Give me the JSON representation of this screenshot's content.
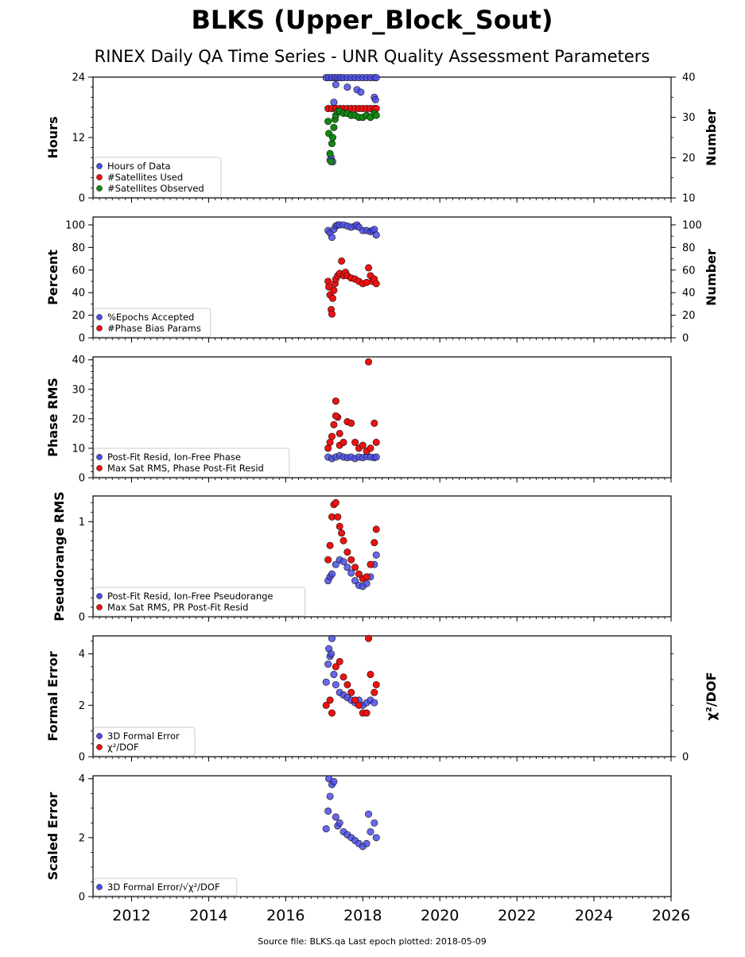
{
  "title": "BLKS (Upper_Block_Sout)",
  "subtitle": "RINEX Daily QA Time Series - UNR Quality Assessment Parameters",
  "footer": "Source file: BLKS.qa Last epoch plotted: 2018-05-09",
  "colors": {
    "blue": "#4c4ce6",
    "red": "#ee1111",
    "green": "#118811"
  },
  "x_axis": {
    "range": [
      2011.0,
      2026.0
    ],
    "ticks": [
      "2012",
      "2014",
      "2016",
      "2018",
      "2020",
      "2022",
      "2024",
      "2026"
    ]
  },
  "chart_data": [
    {
      "type": "scatter",
      "ylabel": "Hours",
      "ylim": [
        0,
        24
      ],
      "yticks": [
        "0",
        "12",
        "24"
      ],
      "right_axis": {
        "label": "Number",
        "ylim": [
          10,
          40
        ],
        "ticks": [
          "10",
          "20",
          "30",
          "40"
        ]
      },
      "legend": [
        "Hours of Data",
        "#Satellites Used",
        "#Satellites Observed"
      ],
      "series": [
        {
          "name": "Hours of Data",
          "color": "blue",
          "axis": "left",
          "x": [
            2017.05,
            2017.12,
            2017.2,
            2017.28,
            2017.35,
            2017.42,
            2017.5,
            2017.6,
            2017.7,
            2017.8,
            2017.9,
            2018.0,
            2018.1,
            2018.2,
            2018.3,
            2018.35,
            2017.15,
            2017.18,
            2017.22,
            2017.25,
            2017.3,
            2017.6,
            2017.85,
            2017.95,
            2018.3,
            2018.33
          ],
          "y": [
            23.9,
            23.9,
            23.9,
            23.9,
            23.9,
            23.9,
            23.9,
            23.9,
            23.9,
            23.9,
            23.9,
            23.9,
            23.9,
            23.9,
            23.9,
            23.9,
            7.5,
            8.0,
            7.2,
            19.0,
            22.5,
            22.0,
            21.5,
            21.0,
            20.0,
            19.5
          ]
        },
        {
          "name": "#Satellites Used",
          "color": "red",
          "axis": "right",
          "x": [
            2017.1,
            2017.2,
            2017.3,
            2017.4,
            2017.5,
            2017.6,
            2017.7,
            2017.8,
            2017.9,
            2018.0,
            2018.1,
            2018.2,
            2018.3,
            2018.35
          ],
          "y": [
            32.2,
            32.2,
            32.2,
            32.2,
            32.2,
            32.2,
            32.2,
            32.2,
            32.2,
            32.2,
            32.2,
            32.2,
            32.2,
            32.2
          ]
        },
        {
          "name": "#Satellites Observed",
          "color": "green",
          "axis": "right",
          "x": [
            2017.1,
            2017.12,
            2017.15,
            2017.18,
            2017.2,
            2017.22,
            2017.25,
            2017.28,
            2017.3,
            2017.35,
            2017.4,
            2017.5,
            2017.6,
            2017.7,
            2017.8,
            2017.9,
            2018.0,
            2018.1,
            2018.2,
            2018.3,
            2018.35
          ],
          "y": [
            29.0,
            26.0,
            21.0,
            19.0,
            23.5,
            25.0,
            27.5,
            29.5,
            30.5,
            31.5,
            31.5,
            31.0,
            31.0,
            30.5,
            30.5,
            30.0,
            30.0,
            30.5,
            30.0,
            31.0,
            30.5
          ]
        }
      ]
    },
    {
      "type": "scatter",
      "ylabel": "Percent",
      "ylim": [
        0,
        107
      ],
      "yticks": [
        "0",
        "20",
        "40",
        "60",
        "80",
        "100"
      ],
      "right_axis": {
        "label": "Number",
        "ylim": [
          0,
          107
        ],
        "ticks": [
          "0",
          "20",
          "40",
          "60",
          "80",
          "100"
        ]
      },
      "legend": [
        "%Epochs Accepted",
        "#Phase Bias Params"
      ],
      "series": [
        {
          "name": "%Epochs Accepted",
          "color": "blue",
          "x": [
            2017.1,
            2017.15,
            2017.2,
            2017.25,
            2017.3,
            2017.35,
            2017.4,
            2017.5,
            2017.6,
            2017.7,
            2017.8,
            2017.85,
            2017.9,
            2018.0,
            2018.1,
            2018.2,
            2018.25,
            2018.3,
            2018.35
          ],
          "y": [
            95,
            93,
            89,
            96,
            99,
            100,
            100,
            100,
            99,
            98,
            99,
            100,
            98,
            95,
            95,
            94,
            95,
            96,
            91
          ]
        },
        {
          "name": "#Phase Bias Params",
          "color": "red",
          "x": [
            2017.1,
            2017.12,
            2017.15,
            2017.18,
            2017.2,
            2017.22,
            2017.25,
            2017.28,
            2017.3,
            2017.35,
            2017.4,
            2017.45,
            2017.5,
            2017.55,
            2017.6,
            2017.7,
            2017.8,
            2017.9,
            2018.0,
            2018.1,
            2018.15,
            2018.2,
            2018.25,
            2018.3,
            2018.35
          ],
          "y": [
            50,
            45,
            38,
            25,
            21,
            35,
            42,
            48,
            52,
            55,
            57,
            68,
            55,
            58,
            55,
            53,
            52,
            50,
            48,
            49,
            62,
            55,
            50,
            52,
            48
          ]
        }
      ]
    },
    {
      "type": "scatter",
      "ylabel": "Phase RMS",
      "ylim": [
        0,
        41
      ],
      "yticks": [
        "0",
        "10",
        "20",
        "30",
        "40"
      ],
      "legend": [
        "Post-Fit Resid, Ion-Free Phase",
        "Max Sat RMS, Phase Post-Fit Resid"
      ],
      "series": [
        {
          "name": "Post-Fit Resid, Ion-Free Phase",
          "color": "blue",
          "x": [
            2017.1,
            2017.2,
            2017.3,
            2017.4,
            2017.5,
            2017.6,
            2017.7,
            2017.8,
            2017.9,
            2018.0,
            2018.1,
            2018.2,
            2018.3,
            2018.35
          ],
          "y": [
            7.0,
            6.5,
            7.0,
            7.5,
            7.0,
            6.8,
            7.0,
            6.5,
            7.0,
            6.8,
            7.2,
            7.0,
            6.8,
            7.0
          ]
        },
        {
          "name": "Max Sat RMS, Phase Post-Fit Resid",
          "color": "red",
          "x": [
            2017.1,
            2017.15,
            2017.2,
            2017.25,
            2017.3,
            2017.35,
            2017.4,
            2017.5,
            2017.6,
            2017.7,
            2017.8,
            2017.9,
            2018.0,
            2018.1,
            2018.15,
            2018.2,
            2018.3,
            2018.35,
            2017.3,
            2017.4
          ],
          "y": [
            10,
            12,
            14,
            18,
            26,
            20.5,
            11,
            12,
            19,
            18.5,
            12,
            10,
            11,
            9,
            39.3,
            10,
            18.5,
            12,
            21,
            15
          ]
        }
      ]
    },
    {
      "type": "scatter",
      "ylabel": "Pseudorange RMS",
      "ylim": [
        0,
        1.27
      ],
      "yticks": [
        "0",
        "1"
      ],
      "legend": [
        "Post-Fit Resid, Ion-Free Pseudorange",
        "Max Sat RMS, PR Post-Fit Resid"
      ],
      "series": [
        {
          "name": "Post-Fit Resid, Ion-Free Pseudorange",
          "color": "blue",
          "x": [
            2017.1,
            2017.15,
            2017.2,
            2017.3,
            2017.4,
            2017.5,
            2017.6,
            2017.7,
            2017.8,
            2017.9,
            2018.0,
            2018.1,
            2018.2,
            2018.3,
            2018.35
          ],
          "y": [
            0.38,
            0.42,
            0.45,
            0.55,
            0.6,
            0.58,
            0.52,
            0.46,
            0.38,
            0.33,
            0.32,
            0.35,
            0.42,
            0.55,
            0.65
          ]
        },
        {
          "name": "Max Sat RMS, PR Post-Fit Resid",
          "color": "red",
          "x": [
            2017.1,
            2017.15,
            2017.2,
            2017.25,
            2017.3,
            2017.35,
            2017.4,
            2017.45,
            2017.5,
            2017.6,
            2017.7,
            2017.8,
            2017.9,
            2018.0,
            2018.1,
            2018.2,
            2018.3,
            2018.35
          ],
          "y": [
            0.6,
            0.75,
            1.05,
            1.18,
            1.2,
            1.05,
            0.95,
            0.88,
            0.8,
            0.68,
            0.6,
            0.52,
            0.45,
            0.4,
            0.42,
            0.55,
            0.78,
            0.92
          ]
        }
      ]
    },
    {
      "type": "scatter",
      "ylabel": "Formal Error",
      "ylim": [
        0,
        4.7
      ],
      "yticks": [
        "0",
        "2",
        "4"
      ],
      "right_axis": {
        "label": "χ²/DOF",
        "ylim": [
          0,
          4.7
        ],
        "ticks": [
          "0"
        ]
      },
      "legend": [
        "3D Formal Error",
        "χ²/DOF"
      ],
      "series": [
        {
          "name": "3D Formal Error",
          "color": "blue",
          "x": [
            2017.05,
            2017.1,
            2017.12,
            2017.15,
            2017.18,
            2017.2,
            2017.25,
            2017.3,
            2017.4,
            2017.5,
            2017.6,
            2017.7,
            2017.8,
            2017.9,
            2018.0,
            2018.1,
            2018.2,
            2018.3
          ],
          "y": [
            2.9,
            3.6,
            4.2,
            3.9,
            4.0,
            4.6,
            3.2,
            2.8,
            2.5,
            2.4,
            2.3,
            2.2,
            2.1,
            2.2,
            2.0,
            2.1,
            2.2,
            2.1
          ]
        },
        {
          "name": "χ²/DOF",
          "color": "red",
          "x": [
            2017.05,
            2017.15,
            2017.2,
            2017.3,
            2017.4,
            2017.5,
            2017.6,
            2017.7,
            2017.8,
            2017.9,
            2018.0,
            2018.1,
            2018.15,
            2018.2,
            2018.3,
            2018.35
          ],
          "y": [
            2.0,
            2.2,
            1.7,
            3.5,
            3.7,
            3.1,
            2.8,
            2.5,
            2.2,
            2.0,
            1.7,
            1.7,
            4.6,
            3.2,
            2.5,
            2.8
          ]
        }
      ]
    },
    {
      "type": "scatter",
      "ylabel": "Scaled Error",
      "ylim": [
        0,
        4.1
      ],
      "yticks": [
        "0",
        "2",
        "4"
      ],
      "legend": [
        "3D Formal Error/√χ²/DOF"
      ],
      "series": [
        {
          "name": "3D Formal Error/√χ²/DOF",
          "color": "blue",
          "x": [
            2017.05,
            2017.1,
            2017.12,
            2017.15,
            2017.2,
            2017.25,
            2017.3,
            2017.35,
            2017.4,
            2017.5,
            2017.6,
            2017.7,
            2017.8,
            2017.9,
            2018.0,
            2018.1,
            2018.15,
            2018.2,
            2018.3,
            2018.35
          ],
          "y": [
            2.3,
            2.9,
            4.0,
            3.4,
            3.8,
            3.9,
            2.7,
            2.4,
            2.5,
            2.2,
            2.1,
            2.0,
            1.9,
            1.8,
            1.7,
            1.8,
            2.8,
            2.2,
            2.5,
            2.0
          ]
        }
      ]
    }
  ]
}
